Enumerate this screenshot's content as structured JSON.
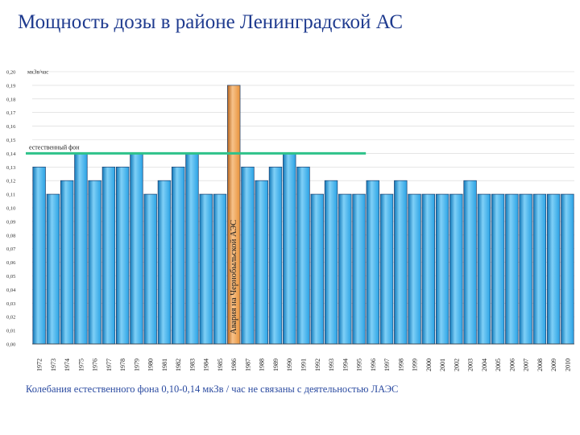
{
  "title": "Мощность дозы в районе Ленинградской АС",
  "footnote": "Колебания естественного фона 0,10-0,14 мкЗв / час не связаны с деятельностью ЛАЭС",
  "colors": {
    "bar": "#2aa2e4",
    "highlight_bar": "#e8923a",
    "background_line": "#2ec28a",
    "text": "#1f3b8f"
  },
  "chart_data": {
    "type": "bar",
    "unit_label": "мкЗв/час",
    "ylim": [
      0,
      0.2
    ],
    "yticks": [
      "0,00",
      "0,01",
      "0,02",
      "0,03",
      "0,04",
      "0,05",
      "0,06",
      "0,07",
      "0,08",
      "0,09",
      "0,10",
      "0,11",
      "0,12",
      "0,13",
      "0,14",
      "0,15",
      "0,16",
      "0,17",
      "0,18",
      "0,19",
      "0,20"
    ],
    "categories": [
      "1972",
      "1973",
      "1974",
      "1975",
      "1976",
      "1977",
      "1978",
      "1979",
      "1980",
      "1981",
      "1982",
      "1983",
      "1984",
      "1985",
      "1986",
      "1987",
      "1988",
      "1989",
      "1990",
      "1991",
      "1992",
      "1993",
      "1994",
      "1995",
      "1996",
      "1997",
      "1998",
      "1999",
      "2000",
      "2001",
      "2002",
      "2003",
      "2004",
      "2005",
      "2006",
      "2007",
      "2008",
      "2009",
      "2010"
    ],
    "values": [
      0.13,
      0.11,
      0.12,
      0.14,
      0.12,
      0.13,
      0.13,
      0.14,
      0.11,
      0.12,
      0.13,
      0.14,
      0.11,
      0.11,
      0.19,
      0.13,
      0.12,
      0.13,
      0.14,
      0.13,
      0.11,
      0.12,
      0.11,
      0.11,
      0.12,
      0.11,
      0.12,
      0.11,
      0.11,
      0.11,
      0.11,
      0.12,
      0.11,
      0.11,
      0.11,
      0.11,
      0.11,
      0.11,
      0.11
    ],
    "highlight": {
      "category": "1986",
      "label": "Авария на Чернобыльской АЭС"
    },
    "reference_line": {
      "value": 0.14,
      "label": "естественный фон",
      "from": "1972",
      "to": "1995"
    }
  }
}
